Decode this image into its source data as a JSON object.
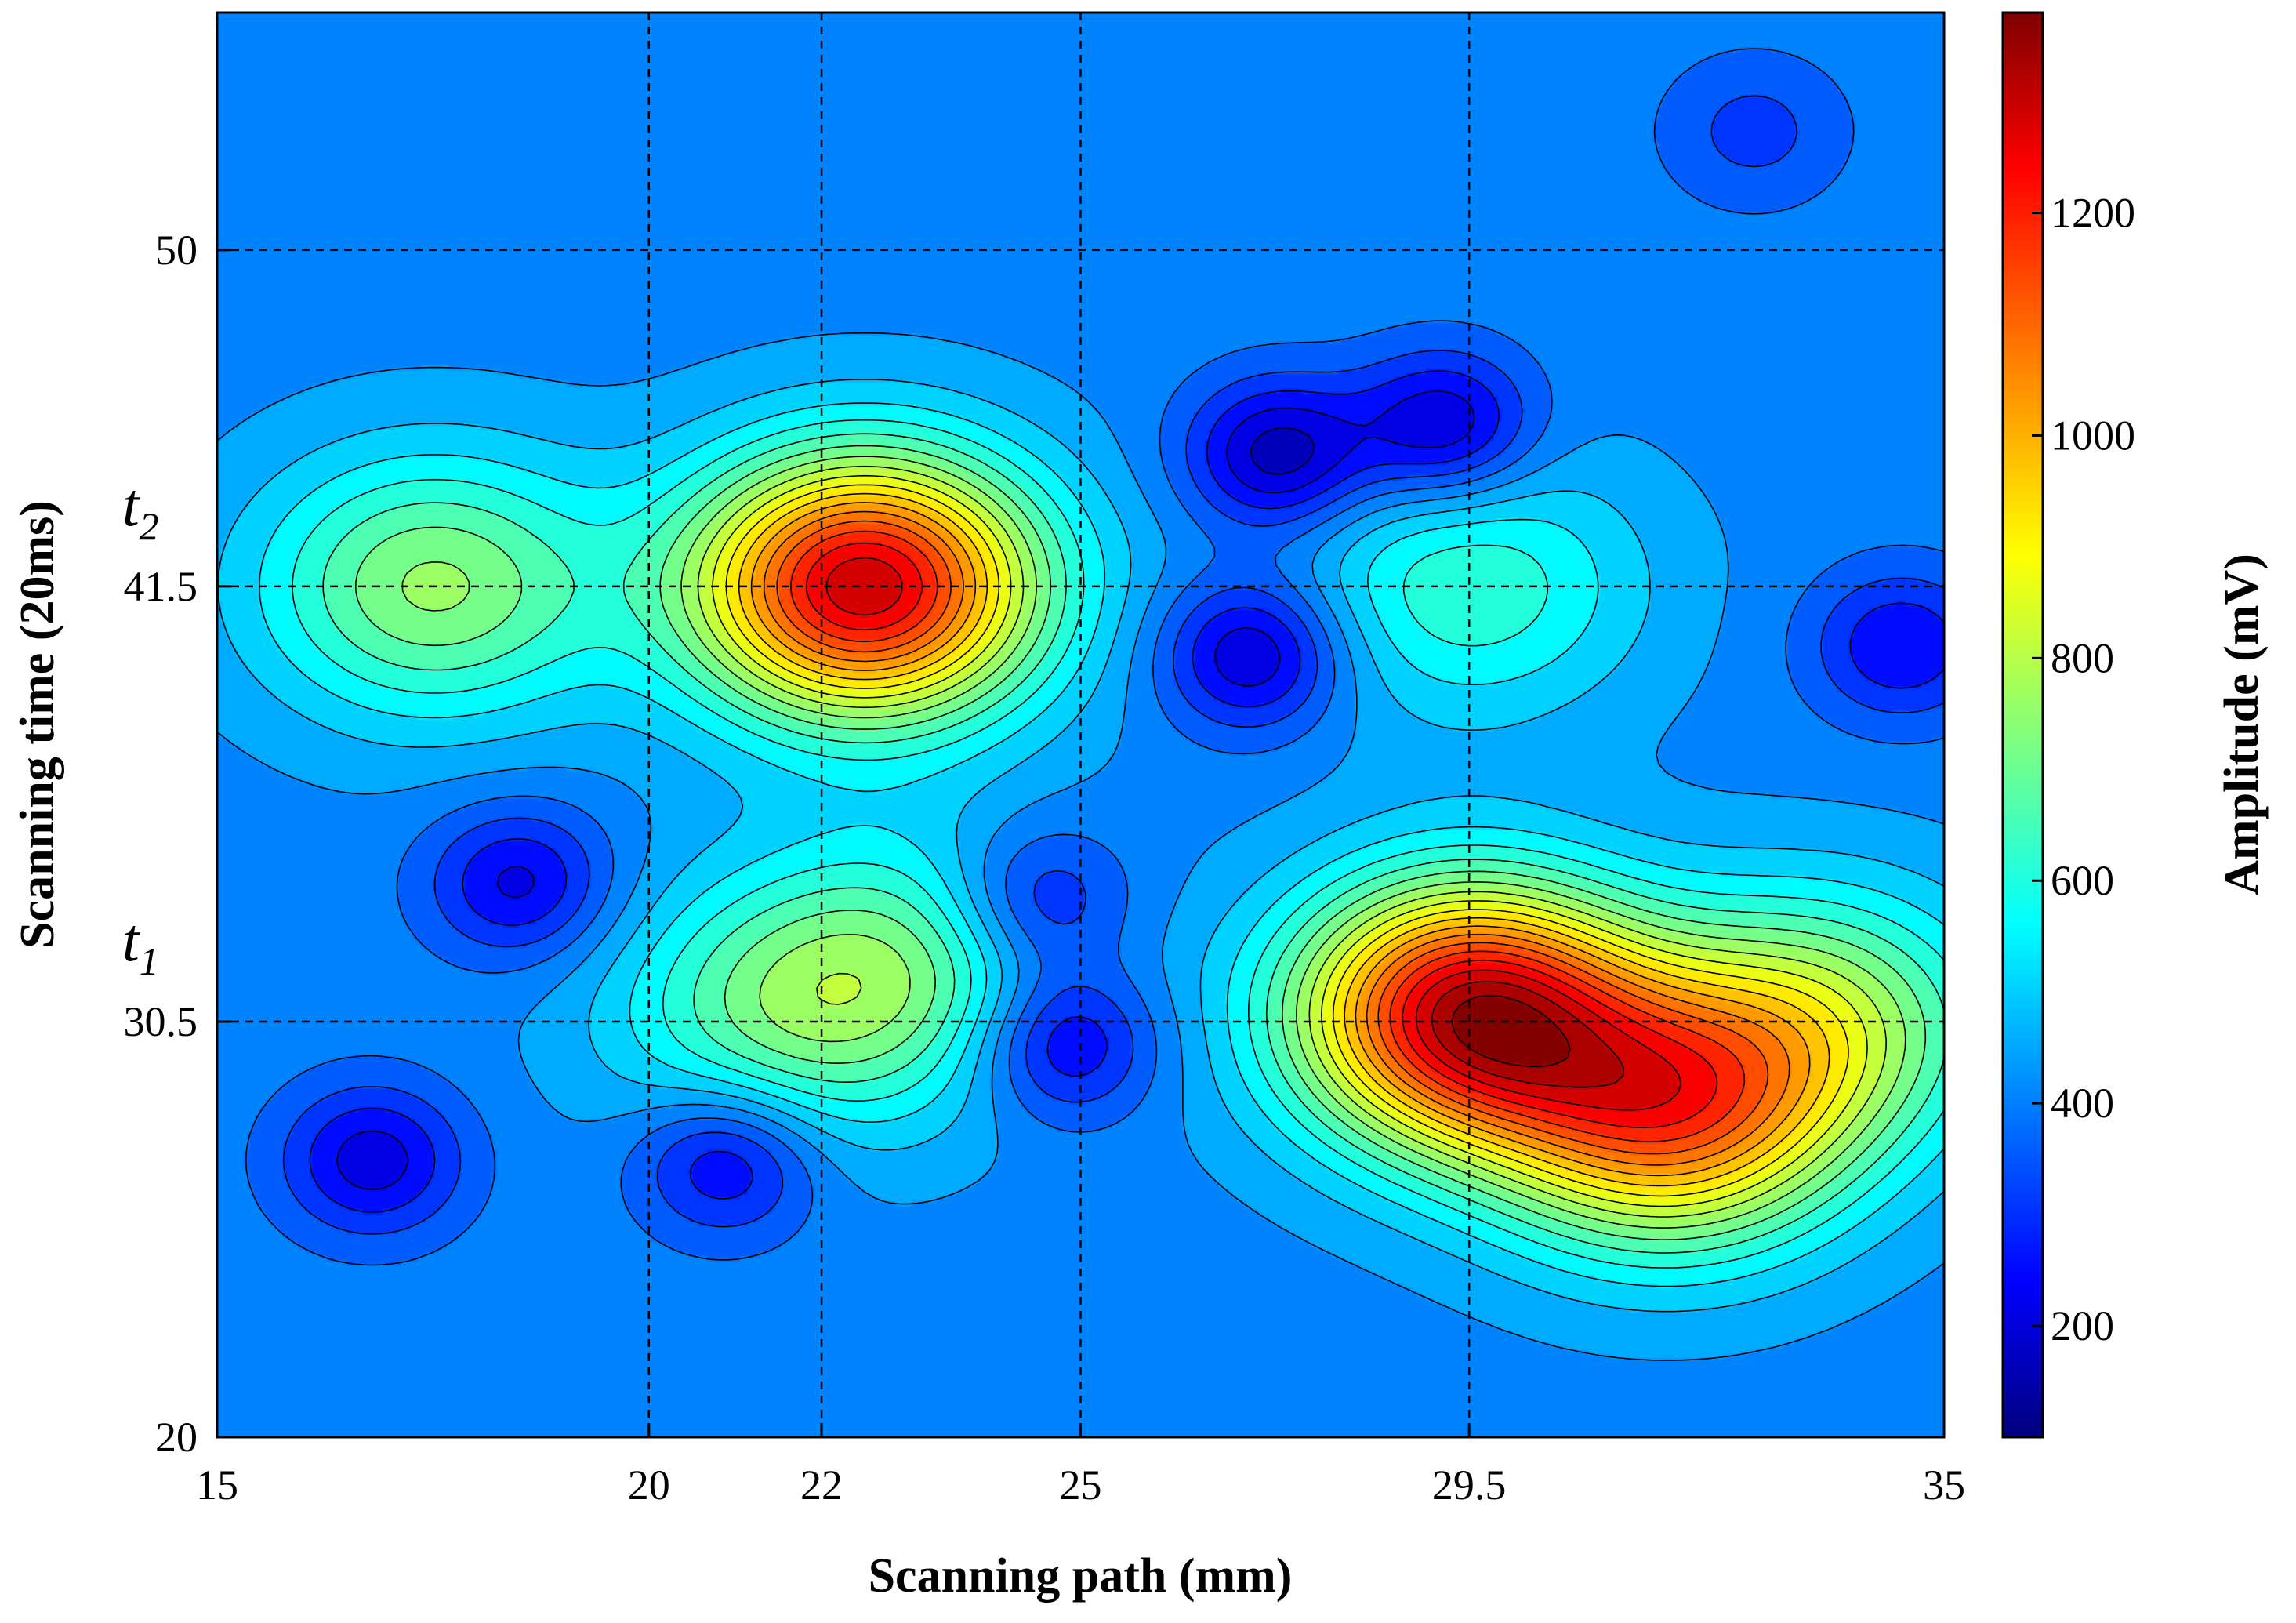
{
  "chart_data": {
    "type": "heatmap",
    "subtype": "filled-contour",
    "title": "",
    "xlabel": "Scanning path (mm)",
    "ylabel": "Scanning time (20ms)",
    "xlim": [
      15,
      35
    ],
    "ylim": [
      20,
      56
    ],
    "xticks": [
      15,
      20,
      22,
      25,
      29.5,
      35
    ],
    "yticks": [
      20,
      30.5,
      41.5,
      50
    ],
    "grid": "dashed at tick positions",
    "y_annotations": [
      {
        "y": 41.5,
        "label": "t",
        "sub": "2"
      },
      {
        "y": 30.5,
        "label": "t",
        "sub": "1"
      }
    ],
    "colorbar": {
      "label": "Amplitude (mV)",
      "range": [
        100,
        1380
      ],
      "ticks": [
        200,
        400,
        600,
        800,
        1000,
        1200
      ],
      "colormap": "jet"
    },
    "contour_levels": [
      150,
      200,
      250,
      300,
      350,
      400,
      450,
      500,
      550,
      600,
      650,
      700,
      750,
      800,
      850,
      900,
      950,
      1000,
      1050,
      1100,
      1150,
      1200,
      1250,
      1300,
      1350
    ],
    "background_amplitude": 430,
    "features": [
      {
        "x": 22.5,
        "y": 41.5,
        "amplitude": 1290,
        "kind": "peak"
      },
      {
        "x": 17.5,
        "y": 41.5,
        "amplitude": 760,
        "kind": "peak"
      },
      {
        "x": 29.5,
        "y": 30.7,
        "amplitude": 1290,
        "kind": "peak"
      },
      {
        "x": 31.8,
        "y": 28.0,
        "amplitude": 1000,
        "kind": "peak"
      },
      {
        "x": 33.5,
        "y": 30.5,
        "amplitude": 780,
        "kind": "peak"
      },
      {
        "x": 29.5,
        "y": 41.5,
        "amplitude": 640,
        "kind": "peak"
      },
      {
        "x": 21.5,
        "y": 30.7,
        "amplitude": 660,
        "kind": "peak"
      },
      {
        "x": 23.0,
        "y": 32.0,
        "amplitude": 650,
        "kind": "peak"
      },
      {
        "x": 29.2,
        "y": 45.5,
        "amplitude": 180,
        "kind": "trough"
      },
      {
        "x": 27.3,
        "y": 44.8,
        "amplitude": 160,
        "kind": "trough"
      },
      {
        "x": 27.0,
        "y": 39.8,
        "amplitude": 180,
        "kind": "trough"
      },
      {
        "x": 34.5,
        "y": 40.0,
        "amplitude": 250,
        "kind": "trough"
      },
      {
        "x": 18.5,
        "y": 34.0,
        "amplitude": 230,
        "kind": "trough"
      },
      {
        "x": 24.8,
        "y": 30.0,
        "amplitude": 200,
        "kind": "trough"
      },
      {
        "x": 16.8,
        "y": 27.0,
        "amplitude": 220,
        "kind": "trough"
      },
      {
        "x": 20.9,
        "y": 27.0,
        "amplitude": 220,
        "kind": "trough"
      },
      {
        "x": 24.5,
        "y": 33.5,
        "amplitude": 240,
        "kind": "trough"
      },
      {
        "x": 32.8,
        "y": 53.0,
        "amplitude": 330,
        "kind": "trough"
      }
    ]
  }
}
